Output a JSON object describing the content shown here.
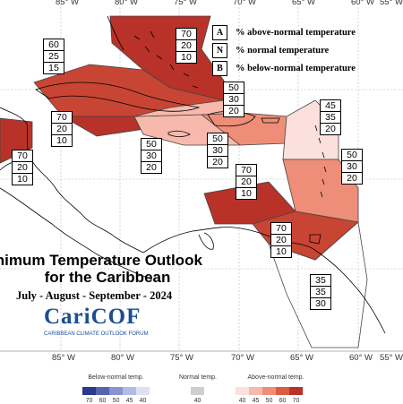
{
  "title_line1": "inimum Temperature Outlook",
  "title_line2": "for the Caribbean",
  "subtitle": "July - August - September - 2024",
  "logo": {
    "name": "CariCOF",
    "tagline": "CARIBBEAN CLIMATE OUTLOOK FORUM"
  },
  "longitude_labels": [
    "85° W",
    "80° W",
    "75° W",
    "70° W",
    "65° W",
    "60° W",
    "55° W"
  ],
  "legend_key": [
    {
      "letter": "A",
      "text": "% above-normal temperature"
    },
    {
      "letter": "N",
      "text": "% normal temperature"
    },
    {
      "letter": "B",
      "text": "% below-normal temperature"
    }
  ],
  "regions": [
    {
      "name": "bahamas",
      "probs": [
        "70",
        "20",
        "10"
      ]
    },
    {
      "name": "cuba-cayman",
      "probs": [
        "60",
        "25",
        "15"
      ]
    },
    {
      "name": "cuba-south",
      "probs": [
        "70",
        "20",
        "10"
      ]
    },
    {
      "name": "belize",
      "probs": [
        "70",
        "20",
        "10"
      ]
    },
    {
      "name": "jamaica",
      "probs": [
        "50",
        "30",
        "20"
      ]
    },
    {
      "name": "hispaniola",
      "probs": [
        "50",
        "30",
        "20"
      ]
    },
    {
      "name": "turks-caicos",
      "probs": [
        "50",
        "30",
        "20"
      ]
    },
    {
      "name": "leeward-islands",
      "probs": [
        "45",
        "35",
        "20"
      ]
    },
    {
      "name": "windward-islands",
      "probs": [
        "50",
        "30",
        "20"
      ]
    },
    {
      "name": "abc-islands",
      "probs": [
        "70",
        "20",
        "10"
      ]
    },
    {
      "name": "trinidad",
      "probs": [
        "70",
        "20",
        "10"
      ]
    },
    {
      "name": "guianas",
      "probs": [
        "35",
        "35",
        "30"
      ]
    }
  ],
  "colorbar": {
    "below": {
      "label": "Below-normal temp.",
      "ticks": [
        "70",
        "60",
        "50",
        "45",
        "40"
      ],
      "colors": [
        "#2b3a8c",
        "#5566b0",
        "#8895cf",
        "#b3bce2",
        "#dde1f2"
      ]
    },
    "normal": {
      "label": "Normal temp.",
      "ticks": [
        "40"
      ],
      "colors": [
        "#cfcfcf"
      ]
    },
    "above": {
      "label": "Above-normal temp.",
      "ticks": [
        "40",
        "45",
        "50",
        "60",
        "70"
      ],
      "colors": [
        "#fbe0dc",
        "#f6b9ab",
        "#ee8e78",
        "#d95c43",
        "#b8322a"
      ]
    }
  }
}
